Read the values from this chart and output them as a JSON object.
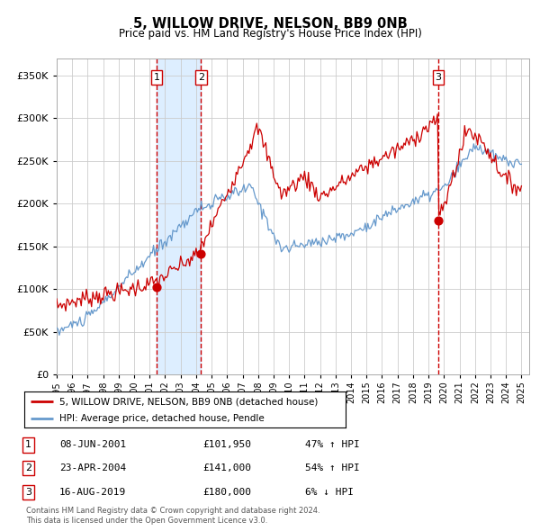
{
  "title": "5, WILLOW DRIVE, NELSON, BB9 0NB",
  "subtitle": "Price paid vs. HM Land Registry's House Price Index (HPI)",
  "legend_line1": "5, WILLOW DRIVE, NELSON, BB9 0NB (detached house)",
  "legend_line2": "HPI: Average price, detached house, Pendle",
  "footer1": "Contains HM Land Registry data © Crown copyright and database right 2024.",
  "footer2": "This data is licensed under the Open Government Licence v3.0.",
  "transactions": [
    {
      "num": 1,
      "date": "08-JUN-2001",
      "price": 101950,
      "pct": "47%",
      "dir": "↑",
      "year": 2001.44
    },
    {
      "num": 2,
      "date": "23-APR-2004",
      "price": 141000,
      "pct": "54%",
      "dir": "↑",
      "year": 2004.31
    },
    {
      "num": 3,
      "date": "16-AUG-2019",
      "price": 180000,
      "pct": "6%",
      "dir": "↓",
      "year": 2019.62
    }
  ],
  "ylim": [
    0,
    370000
  ],
  "yticks": [
    0,
    50000,
    100000,
    150000,
    200000,
    250000,
    300000,
    350000
  ],
  "xlim_start": 1995.0,
  "xlim_end": 2025.5,
  "red_color": "#cc0000",
  "blue_color": "#6699cc",
  "shade_color": "#ddeeff",
  "grid_color": "#cccccc",
  "bg_color": "#ffffff"
}
